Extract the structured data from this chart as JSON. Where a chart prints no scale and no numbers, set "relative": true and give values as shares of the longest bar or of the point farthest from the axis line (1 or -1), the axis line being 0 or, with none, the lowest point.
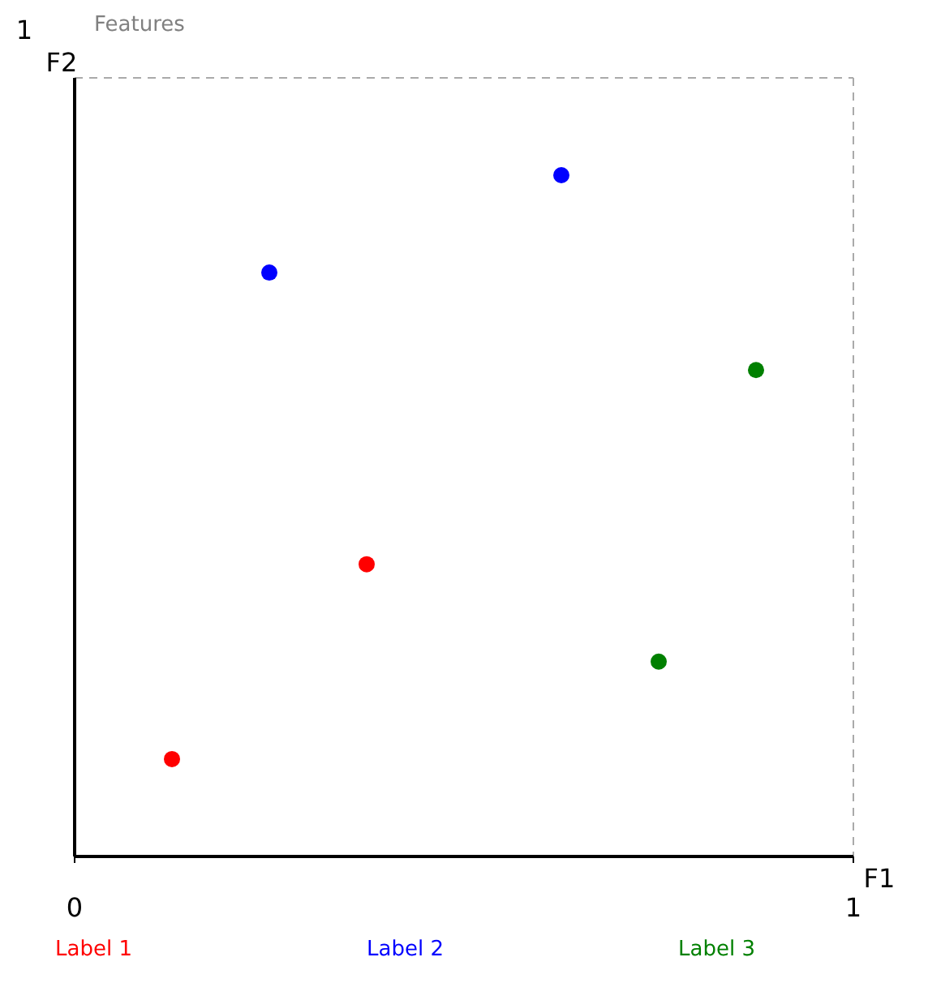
{
  "chart_data": {
    "type": "scatter",
    "title": "Features",
    "xlabel": "F1",
    "ylabel": "F2",
    "xlim": [
      0,
      1
    ],
    "xticks": [
      0,
      1
    ],
    "relative": true,
    "annotations": [
      "1"
    ],
    "grid": false,
    "legend": "bottom",
    "marker": "circle",
    "series": [
      {
        "name": "Label 1",
        "color": "#ff0000",
        "x": [
          0.125,
          0.375
        ],
        "values": [
          0.143,
          0.429
        ]
      },
      {
        "name": "Label 2",
        "color": "#0000ff",
        "x": [
          0.25,
          0.625
        ],
        "values": [
          0.857,
          1
        ]
      },
      {
        "name": "Label 3",
        "color": "#008000",
        "x": [
          0.875,
          0.75
        ],
        "values": [
          0.714,
          0.286
        ]
      }
    ]
  }
}
